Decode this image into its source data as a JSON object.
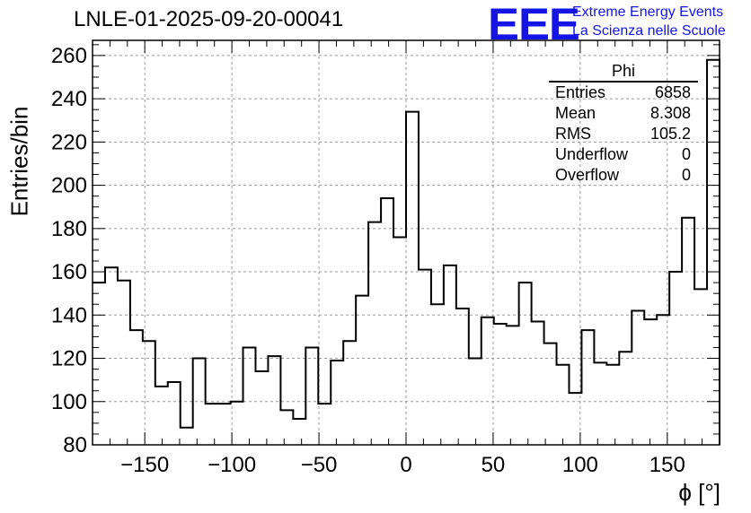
{
  "title": "LNLE-01-2025-09-20-00041",
  "logo": {
    "mark": "EEE",
    "line1": "Extreme Energy Events",
    "line2": "La Scienza nelle Scuole",
    "color": "#1414e6"
  },
  "stats": {
    "name": "Phi",
    "rows": [
      {
        "label": "Entries",
        "value": "6858"
      },
      {
        "label": "Mean",
        "value": "8.308"
      },
      {
        "label": "RMS",
        "value": "105.2"
      },
      {
        "label": "Underflow",
        "value": "0"
      },
      {
        "label": "Overflow",
        "value": "0"
      }
    ]
  },
  "chart_data": {
    "type": "bar",
    "style": "step-histogram",
    "title": "LNLE-01-2025-09-20-00041",
    "xlabel": "ϕ [°]",
    "ylabel": "Entries/bin",
    "xlim": [
      -180,
      180
    ],
    "ylim": [
      80,
      267
    ],
    "bin_width": 7.2,
    "x_ticks": [
      -150,
      -100,
      -50,
      0,
      50,
      100,
      150
    ],
    "x_tick_labels": [
      "−150",
      "−100",
      "−50",
      "0",
      "50",
      "100",
      "150"
    ],
    "y_ticks": [
      80,
      100,
      120,
      140,
      160,
      180,
      200,
      220,
      240,
      260
    ],
    "y_tick_labels": [
      "80",
      "100",
      "120",
      "140",
      "160",
      "180",
      "200",
      "220",
      "240",
      "260"
    ],
    "grid": true,
    "values": [
      155,
      162,
      156,
      133,
      128,
      107,
      109,
      88,
      120,
      99,
      99,
      100,
      125,
      114,
      121,
      96,
      92,
      125,
      99,
      119,
      128,
      149,
      183,
      194,
      176,
      234,
      161,
      145,
      163,
      143,
      120,
      139,
      136,
      135,
      155,
      137,
      127,
      117,
      104,
      133,
      118,
      117,
      123,
      142,
      138,
      140,
      160,
      185,
      152,
      258
    ]
  }
}
